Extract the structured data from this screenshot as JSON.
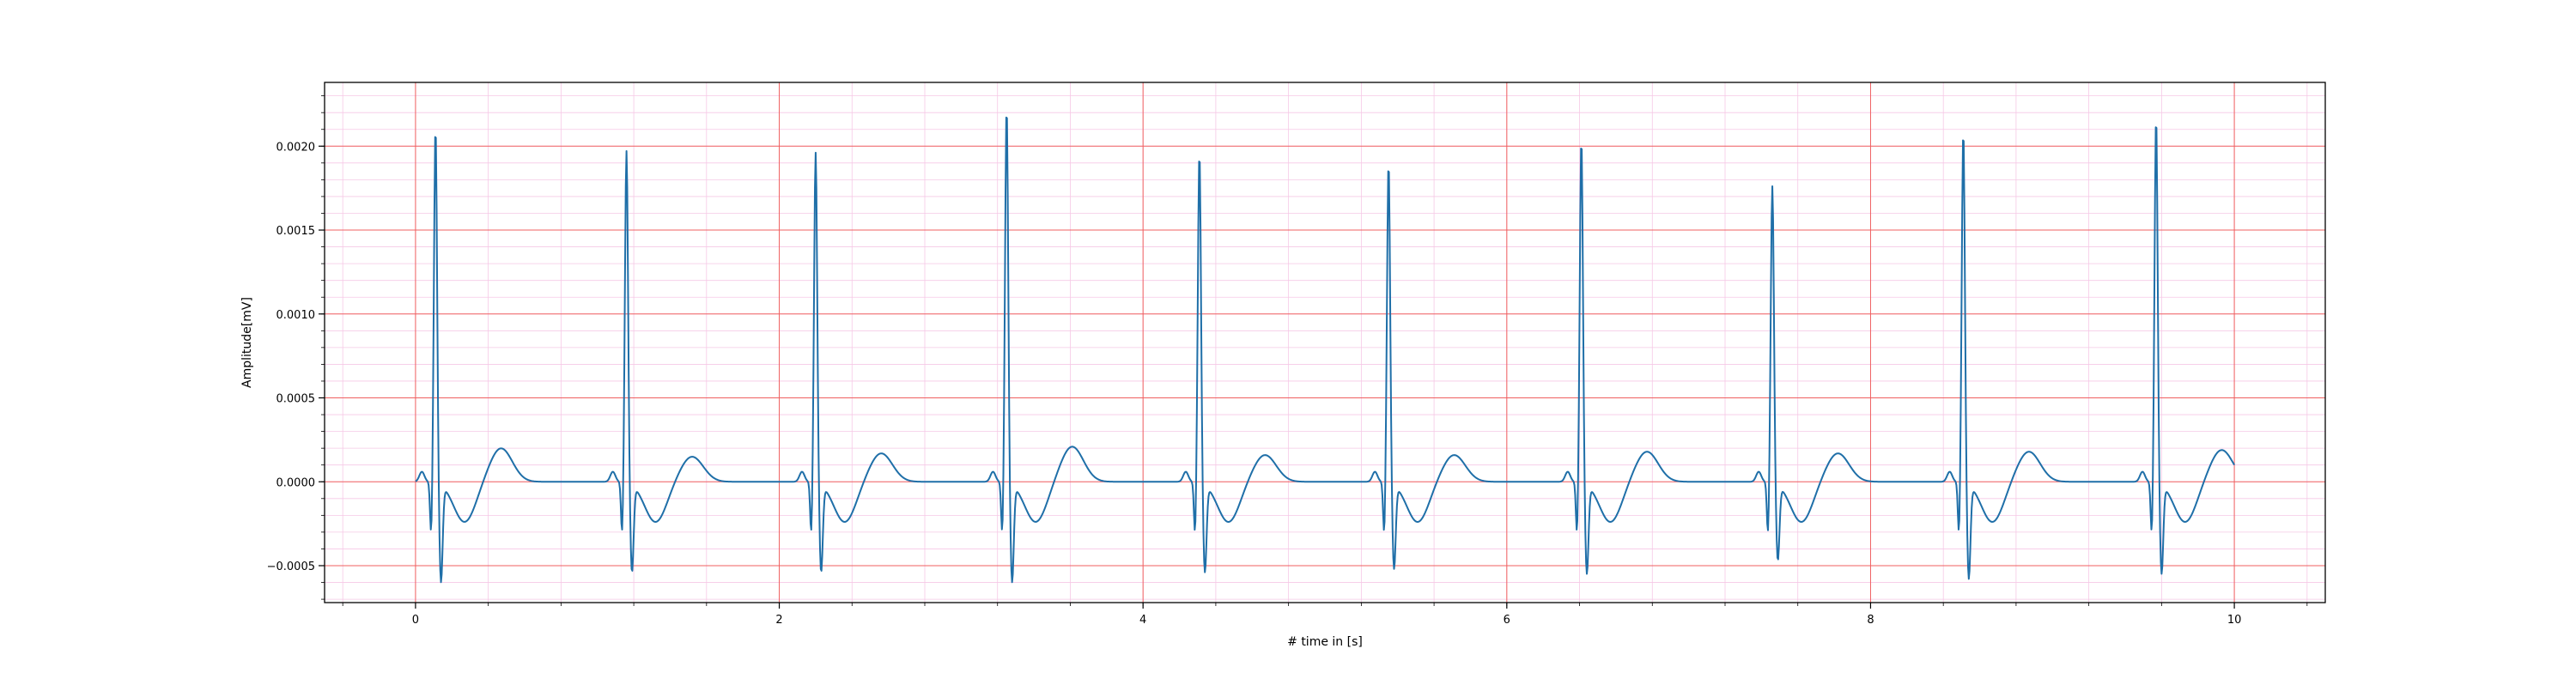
{
  "chart_data": {
    "type": "line",
    "title": "",
    "xlabel": "# time in [s]",
    "ylabel": "Amplitude[mV]",
    "xlim": [
      -0.5,
      10.5
    ],
    "ylim": [
      -0.00072,
      0.00238
    ],
    "x_ticks": [
      0,
      2,
      4,
      6,
      8,
      10
    ],
    "x_tick_labels": [
      "0",
      "2",
      "4",
      "6",
      "8",
      "10"
    ],
    "y_ticks": [
      -0.0005,
      0.0,
      0.0005,
      0.001,
      0.0015,
      0.002
    ],
    "y_tick_labels": [
      "−0.0005",
      "0.0000",
      "0.0005",
      "0.0010",
      "0.0015",
      "0.0020"
    ],
    "grid": {
      "major": true,
      "minor": true,
      "major_color": "#f06060",
      "minor_color": "#f6c8e6"
    },
    "line_color": "#1f6fa8",
    "sampling_rate_hz": 250,
    "duration_s": 10,
    "start_value": 3e-05,
    "end_value": 5e-05,
    "beats": [
      {
        "t": 0.11,
        "r": 0.00212,
        "s": -0.00058,
        "t_wave": 0.0002
      },
      {
        "t": 1.16,
        "r": 0.00198,
        "s": -0.00052,
        "t_wave": 0.00015
      },
      {
        "t": 2.2,
        "r": 0.00197,
        "s": -0.00052,
        "t_wave": 0.00017
      },
      {
        "t": 3.25,
        "r": 0.00224,
        "s": -0.00058,
        "t_wave": 0.00021
      },
      {
        "t": 4.31,
        "r": 0.00197,
        "s": -0.00052,
        "t_wave": 0.00016
      },
      {
        "t": 5.35,
        "r": 0.00191,
        "s": -0.0005,
        "t_wave": 0.00016
      },
      {
        "t": 6.41,
        "r": 0.00205,
        "s": -0.00053,
        "t_wave": 0.00018
      },
      {
        "t": 7.46,
        "r": 0.00177,
        "s": -0.00045,
        "t_wave": 0.00017
      },
      {
        "t": 8.51,
        "r": 0.0021,
        "s": -0.00056,
        "t_wave": 0.00018
      },
      {
        "t": 9.57,
        "r": 0.00218,
        "s": -0.00053,
        "t_wave": 0.00019
      }
    ],
    "series": [
      {
        "values": []
      }
    ]
  }
}
